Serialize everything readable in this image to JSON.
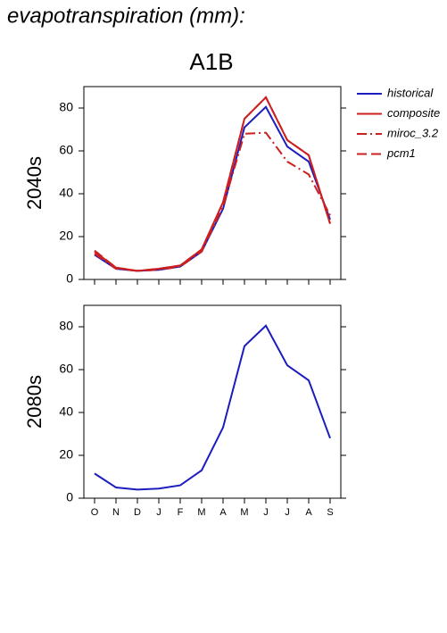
{
  "header": {
    "title": "evapotranspiration (mm):",
    "scenario": "A1B"
  },
  "chart_data": [
    {
      "type": "line",
      "ylabel": "2040s",
      "ylim": [
        0,
        90
      ],
      "yticks": [
        0,
        20,
        40,
        60,
        80
      ],
      "series": [
        {
          "name": "historical",
          "color": "#1c1cbf",
          "style": "solid",
          "values": [
            11.5,
            5,
            4,
            4.5,
            6,
            13,
            33,
            71,
            80.5,
            62,
            55,
            28
          ]
        },
        {
          "name": "composite",
          "color": "#cc2020",
          "style": "solid",
          "values": [
            13,
            5.5,
            4,
            5,
            6.5,
            14,
            36,
            75,
            85,
            65,
            58,
            26
          ]
        },
        {
          "name": "miroc_3.2",
          "color": "#cc2020",
          "style": "dashdot",
          "values": [
            12,
            5,
            4,
            4.5,
            6,
            13,
            34,
            68,
            68.5,
            55,
            49,
            30
          ]
        },
        {
          "name": "pcm1",
          "color": "#cc2020",
          "style": "dashed",
          "values": [
            13.5,
            5.5,
            4,
            5,
            6.5,
            14,
            36,
            75,
            85,
            65,
            58,
            26
          ]
        }
      ],
      "legend": "right"
    },
    {
      "type": "line",
      "ylabel": "2080s",
      "ylim": [
        0,
        90
      ],
      "yticks": [
        0,
        20,
        40,
        60,
        80
      ],
      "categories": [
        "O",
        "N",
        "D",
        "J",
        "F",
        "M",
        "A",
        "M",
        "J",
        "J",
        "A",
        "S"
      ],
      "series": [
        {
          "name": "historical",
          "color": "#1c1cbf",
          "style": "solid",
          "values": [
            11.5,
            5,
            4,
            4.5,
            6,
            13,
            33,
            71,
            80.5,
            62,
            55,
            28
          ]
        }
      ]
    }
  ]
}
